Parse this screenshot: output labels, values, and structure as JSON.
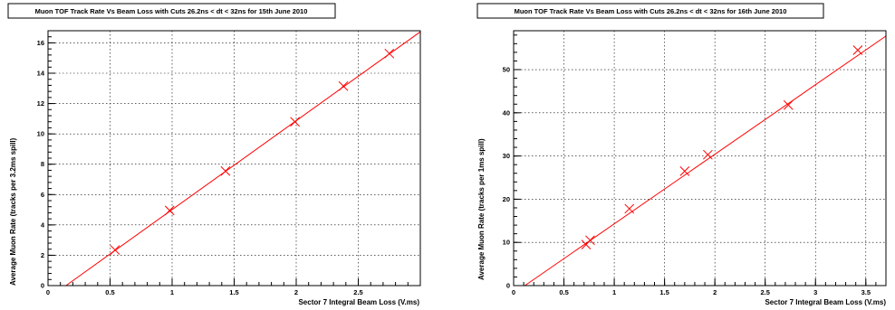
{
  "chart_data": [
    {
      "type": "scatter",
      "title": "Muon TOF Track Rate Vs Beam Loss with Cuts 26.2ns < dt < 32ns for 15th June 2010",
      "xlabel": "Sector 7 Integral Beam Loss (V.ms)",
      "ylabel": "Average Muon Rate (tracks per 3.2ms spill)",
      "xlim": [
        0,
        3.0
      ],
      "ylim": [
        0,
        16.8
      ],
      "x_ticks": [
        0,
        0.5,
        1,
        1.5,
        2,
        2.5
      ],
      "x_tick_labels": [
        "0",
        "0.5",
        "1",
        "1.5",
        "2",
        "2.5"
      ],
      "y_ticks": [
        0,
        2,
        4,
        6,
        8,
        10,
        12,
        14,
        16
      ],
      "y_tick_labels": [
        "0",
        "2",
        "4",
        "6",
        "8",
        "10",
        "12",
        "14",
        "16"
      ],
      "grid": true,
      "series": [
        {
          "marker": "x",
          "color": "#ff0000",
          "x": [
            0.54,
            0.98,
            1.43,
            1.99,
            2.38,
            2.75
          ],
          "y": [
            2.35,
            4.95,
            7.55,
            10.8,
            13.15,
            15.3
          ]
        }
      ],
      "fit": {
        "color": "#ff0000",
        "slope": 5.86,
        "intercept": -0.85
      }
    },
    {
      "type": "scatter",
      "title": "Muon TOF Track Rate Vs Beam Loss with Cuts 26.2ns < dt < 32ns for 16th June 2010",
      "xlabel": "Sector 7 Integral Beam Loss (V.ms)",
      "ylabel": "Average Muon Rate (tracks per 1ms spill)",
      "xlim": [
        0,
        3.7
      ],
      "ylim": [
        0,
        59
      ],
      "x_ticks": [
        0,
        0.5,
        1,
        1.5,
        2,
        2.5,
        3,
        3.5
      ],
      "x_tick_labels": [
        "0",
        "0.5",
        "1",
        "1.5",
        "2",
        "2.5",
        "3",
        "3.5"
      ],
      "y_ticks": [
        0,
        10,
        20,
        30,
        40,
        50
      ],
      "y_tick_labels": [
        "0",
        "10",
        "20",
        "30",
        "40",
        "50"
      ],
      "grid": true,
      "series": [
        {
          "marker": "x",
          "color": "#ff0000",
          "x": [
            0.72,
            0.76,
            1.15,
            1.7,
            1.93,
            2.73,
            3.42
          ],
          "y": [
            9.5,
            10.5,
            17.8,
            26.5,
            30.3,
            41.8,
            54.5
          ]
        }
      ],
      "fit": {
        "color": "#ff0000",
        "slope": 16.1,
        "intercept": -1.8
      }
    }
  ]
}
